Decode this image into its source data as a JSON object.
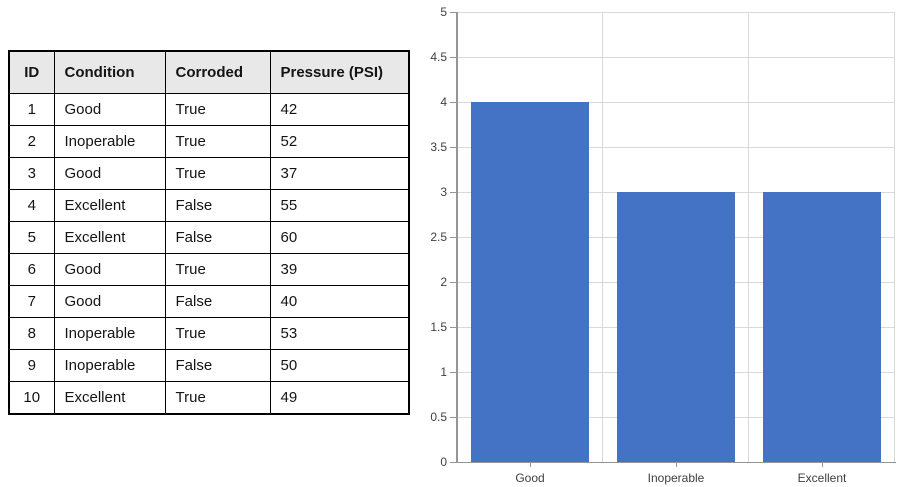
{
  "page": {
    "background": "#FFFFFF"
  },
  "chart_data": [
    {
      "type": "table",
      "title": "",
      "columns": [
        "ID",
        "Condition",
        "Corroded",
        "Pressure (PSI)"
      ],
      "rows": [
        [
          "1",
          "Good",
          "True",
          "42"
        ],
        [
          "2",
          "Inoperable",
          "True",
          "52"
        ],
        [
          "3",
          "Good",
          "True",
          "37"
        ],
        [
          "4",
          "Excellent",
          "False",
          "55"
        ],
        [
          "5",
          "Excellent",
          "False",
          "60"
        ],
        [
          "6",
          "Good",
          "True",
          "39"
        ],
        [
          "7",
          "Good",
          "False",
          "40"
        ],
        [
          "8",
          "Inoperable",
          "True",
          "53"
        ],
        [
          "9",
          "Inoperable",
          "False",
          "50"
        ],
        [
          "10",
          "Excellent",
          "True",
          "49"
        ]
      ],
      "header_bg": "#E8E8E8",
      "border_color": "#000000"
    },
    {
      "type": "bar",
      "title": "",
      "xlabel": "",
      "ylabel": "",
      "categories": [
        "Good",
        "Inoperable",
        "Excellent"
      ],
      "values": [
        4,
        3,
        3
      ],
      "ylim": [
        0,
        5
      ],
      "ytick_step": 0.5,
      "grid": true,
      "legend": "none",
      "bar_color": "#4472C4",
      "gridline_color": "#D9D9D9",
      "axis_color": "#969696",
      "label_color": "#404040"
    }
  ]
}
